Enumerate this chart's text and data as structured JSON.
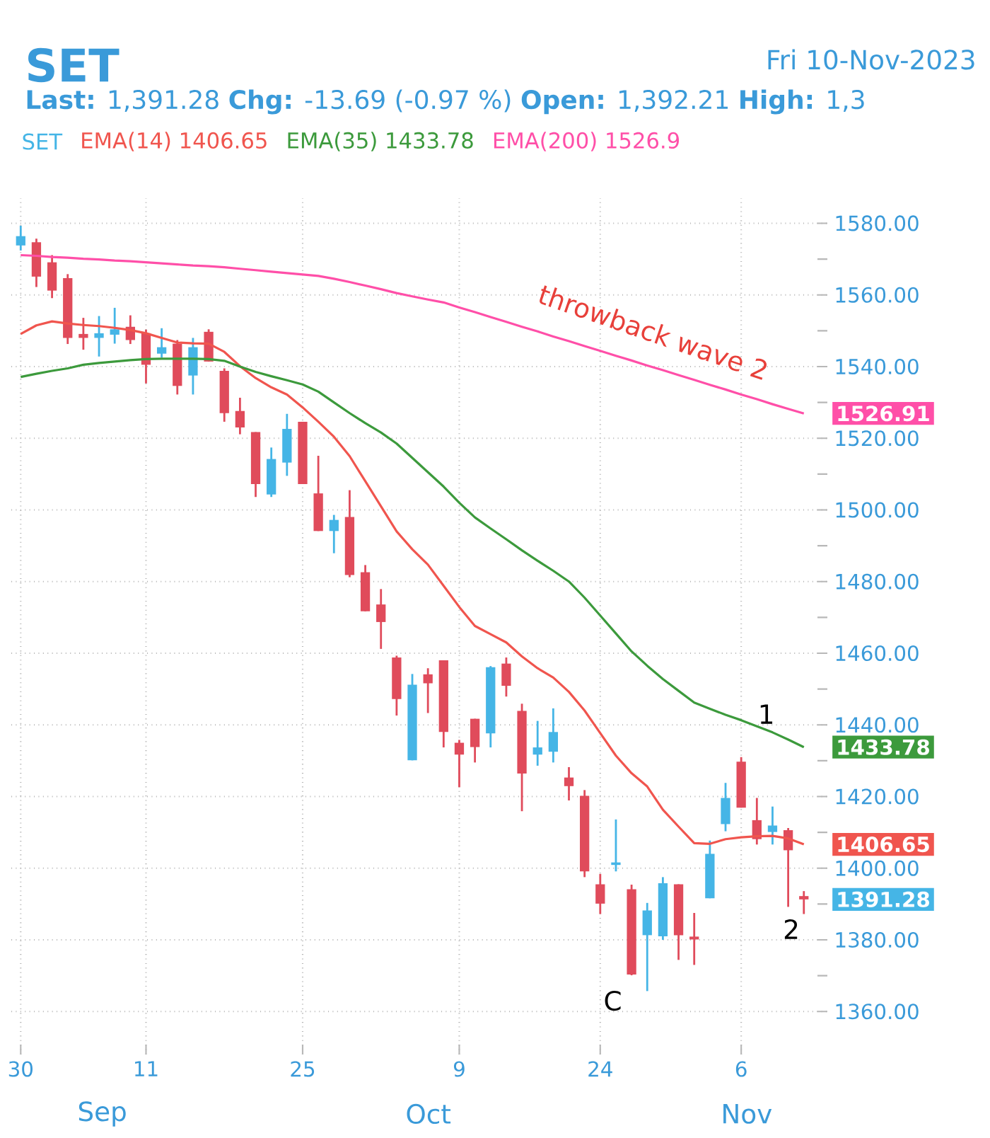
{
  "chart_data": {
    "type": "candlestick",
    "title": "SET",
    "subtitle": "**Last:** 1,391.28 **Chg:** -13.69 (-0.97 %) **Open:** 1,392.21 **High:** 1,3",
    "categories": [
      "30",
      null,
      null,
      null,
      null,
      null,
      null,
      null,
      "11",
      null,
      null,
      null,
      null,
      null,
      null,
      null,
      null,
      null,
      "25",
      null,
      null,
      null,
      null,
      null,
      null,
      null,
      null,
      null,
      "9",
      null,
      null,
      null,
      null,
      null,
      null,
      null,
      null,
      "24",
      null,
      null,
      null,
      null,
      null,
      null,
      null,
      null,
      "6",
      null,
      null,
      null,
      null
    ],
    "series": [
      {
        "name": "SET",
        "color": "#45b5e6",
        "ohlc": [
          [
            1573.8,
            1579.3,
            1572.4,
            1576.4
          ],
          [
            1574.7,
            1575.7,
            1562.2,
            1565.1
          ],
          [
            1569.1,
            1571.1,
            1559.1,
            1561.2
          ],
          [
            1564.7,
            1565.8,
            1546.3,
            1548.0
          ],
          [
            1549.1,
            1553.6,
            1544.7,
            1548.0
          ],
          [
            1548.0,
            1554.1,
            1542.8,
            1549.3
          ],
          [
            1548.9,
            1556.4,
            1546.4,
            1550.4
          ],
          [
            1551.1,
            1554.3,
            1546.3,
            1547.4
          ],
          [
            1549.3,
            1550.3,
            1535.3,
            1540.5
          ],
          [
            1543.6,
            1550.7,
            1542.5,
            1545.4
          ],
          [
            1546.4,
            1547.4,
            1532.2,
            1534.6
          ],
          [
            1537.5,
            1548.0,
            1532.2,
            1545.4
          ],
          [
            1549.7,
            1550.4,
            1541.4,
            1541.4
          ],
          [
            1538.8,
            1539.5,
            1524.6,
            1527.0
          ],
          [
            1527.6,
            1531.3,
            1521.1,
            1523.0
          ],
          [
            1521.7,
            1521.7,
            1503.6,
            1507.2
          ],
          [
            1504.3,
            1517.4,
            1503.6,
            1514.2
          ],
          [
            1513.2,
            1526.8,
            1509.5,
            1522.6
          ],
          [
            1524.6,
            1524.6,
            1507.2,
            1507.2
          ],
          [
            1504.6,
            1515.1,
            1494.1,
            1494.1
          ],
          [
            1494.1,
            1498.6,
            1487.9,
            1497.2
          ],
          [
            1498.0,
            1505.5,
            1481.2,
            1481.8
          ],
          [
            1482.6,
            1484.6,
            1471.7,
            1471.7
          ],
          [
            1473.6,
            1477.9,
            1461.2,
            1468.7
          ],
          [
            1458.8,
            1459.3,
            1442.6,
            1447.2
          ],
          [
            1430.1,
            1454.2,
            1430.1,
            1451.2
          ],
          [
            1454.1,
            1455.8,
            1443.3,
            1451.6
          ],
          [
            1458.0,
            1458.0,
            1433.7,
            1438.0
          ],
          [
            1435.0,
            1435.8,
            1422.6,
            1431.7
          ],
          [
            1441.7,
            1441.7,
            1429.5,
            1433.8
          ],
          [
            1437.6,
            1456.4,
            1433.7,
            1456.1
          ],
          [
            1457.1,
            1458.8,
            1447.9,
            1450.9
          ],
          [
            1443.9,
            1445.9,
            1415.9,
            1426.4
          ],
          [
            1431.7,
            1441.1,
            1428.6,
            1433.7
          ],
          [
            1432.5,
            1444.6,
            1429.5,
            1438.0
          ],
          [
            1425.3,
            1428.2,
            1418.9,
            1422.9
          ],
          [
            1420.2,
            1421.8,
            1397.5,
            1399.1
          ],
          [
            1395.5,
            1398.4,
            1387.2,
            1390.1
          ],
          [
            1400.9,
            1413.6,
            1399.1,
            1401.6
          ],
          [
            1394.1,
            1395.4,
            1370.1,
            1370.3
          ],
          [
            1381.3,
            1390.3,
            1365.7,
            1388.2
          ],
          [
            1381.0,
            1397.5,
            1380.0,
            1395.8
          ],
          [
            1395.5,
            1395.5,
            1374.4,
            1381.3
          ],
          [
            1380.9,
            1387.5,
            1373.0,
            1380.1
          ],
          [
            1391.6,
            1407.7,
            1391.6,
            1404.0
          ],
          [
            1412.3,
            1423.8,
            1410.3,
            1419.6
          ],
          [
            1429.7,
            1431.0,
            1416.9,
            1416.9
          ],
          [
            1413.4,
            1419.6,
            1406.6,
            1408.1
          ],
          [
            1410.1,
            1417.2,
            1406.6,
            1411.9
          ],
          [
            1410.6,
            1411.2,
            1389.2,
            1405.0
          ],
          [
            1392.21,
            1393.6,
            1387.2,
            1391.28
          ]
        ],
        "colors": [
          "#45b5e6",
          "#e04b5b",
          "#e04b5b",
          "#e04b5b",
          "#e04b5b",
          "#45b5e6",
          "#45b5e6",
          "#e04b5b",
          "#e04b5b",
          "#45b5e6",
          "#e04b5b",
          "#45b5e6",
          "#e04b5b",
          "#e04b5b",
          "#e04b5b",
          "#e04b5b",
          "#45b5e6",
          "#45b5e6",
          "#e04b5b",
          "#e04b5b",
          "#45b5e6",
          "#e04b5b",
          "#e04b5b",
          "#e04b5b",
          "#e04b5b",
          "#45b5e6",
          "#e04b5b",
          "#e04b5b",
          "#e04b5b",
          "#e04b5b",
          "#45b5e6",
          "#e04b5b",
          "#e04b5b",
          "#45b5e6",
          "#45b5e6",
          "#e04b5b",
          "#e04b5b",
          "#e04b5b",
          "#45b5e6",
          "#e04b5b",
          "#45b5e6",
          "#45b5e6",
          "#e04b5b",
          "#e04b5b",
          "#45b5e6",
          "#45b5e6",
          "#e04b5b",
          "#e04b5b",
          "#45b5e6",
          "#e04b5b",
          "#e04b5b"
        ],
        "value_labels": [
          null,
          null,
          null,
          null,
          null,
          null,
          null,
          null,
          null,
          null,
          null,
          null,
          null,
          null,
          null,
          null,
          null,
          null,
          null,
          null,
          null,
          null,
          null,
          null,
          null,
          null,
          null,
          null,
          null,
          null,
          null,
          null,
          null,
          null,
          null,
          null,
          null,
          null,
          null,
          null,
          null,
          null,
          null,
          null,
          null,
          null,
          null,
          null,
          null,
          null,
          "1391.28"
        ]
      },
      {
        "name": "EMA(14) 1406.65",
        "type": "line",
        "color": "#f0554e",
        "values": [
          1549.1,
          1551.5,
          1552.6,
          1552.0,
          1551.6,
          1551.3,
          1550.8,
          1550.2,
          1549.3,
          1548.0,
          1546.7,
          1546.5,
          1546.4,
          1544.1,
          1540.1,
          1536.8,
          1534.2,
          1532.2,
          1528.6,
          1524.6,
          1520.4,
          1515.0,
          1508.0,
          1501.0,
          1494.0,
          1489.0,
          1484.7,
          1478.8,
          1472.9,
          1467.6,
          1465.3,
          1463.0,
          1459.1,
          1455.8,
          1453.2,
          1449.2,
          1444.0,
          1437.7,
          1431.4,
          1426.5,
          1422.8,
          1416.3,
          1411.6,
          1407.0,
          1406.8,
          1408.1,
          1408.6,
          1408.9,
          1409.0,
          1408.3,
          1406.65
        ],
        "value_labels": [
          null,
          null,
          null,
          null,
          null,
          null,
          null,
          null,
          null,
          null,
          null,
          null,
          null,
          null,
          null,
          null,
          null,
          null,
          null,
          null,
          null,
          null,
          null,
          null,
          null,
          null,
          null,
          null,
          null,
          null,
          null,
          null,
          null,
          null,
          null,
          null,
          null,
          null,
          null,
          null,
          null,
          null,
          null,
          null,
          null,
          null,
          null,
          null,
          null,
          null,
          "1406.65"
        ]
      },
      {
        "name": "EMA(35) 1433.78",
        "type": "line",
        "color": "#3c9a3c",
        "values": [
          1537.1,
          1538.0,
          1538.8,
          1539.5,
          1540.5,
          1541.0,
          1541.4,
          1541.8,
          1542.1,
          1542.2,
          1542.2,
          1542.2,
          1542.1,
          1541.6,
          1540.0,
          1538.5,
          1537.3,
          1536.2,
          1535.0,
          1533.0,
          1530.0,
          1527.0,
          1524.2,
          1521.6,
          1518.5,
          1514.5,
          1510.5,
          1506.5,
          1502.0,
          1497.9,
          1494.8,
          1491.8,
          1488.7,
          1485.8,
          1483.0,
          1480.0,
          1475.5,
          1470.5,
          1465.5,
          1460.5,
          1456.5,
          1452.8,
          1449.5,
          1446.2,
          1444.5,
          1442.8,
          1441.3,
          1439.6,
          1437.9,
          1435.9,
          1433.78
        ],
        "value_labels": [
          null,
          null,
          null,
          null,
          null,
          null,
          null,
          null,
          null,
          null,
          null,
          null,
          null,
          null,
          null,
          null,
          null,
          null,
          null,
          null,
          null,
          null,
          null,
          null,
          null,
          null,
          null,
          null,
          null,
          null,
          null,
          null,
          null,
          null,
          null,
          null,
          null,
          null,
          null,
          null,
          null,
          null,
          null,
          null,
          null,
          null,
          null,
          null,
          null,
          null,
          "1433.78"
        ]
      },
      {
        "name": "EMA(200) 1526.9",
        "type": "line",
        "color": "#ff4fa8",
        "values": [
          1571.1,
          1570.9,
          1570.6,
          1570.4,
          1570.1,
          1569.9,
          1569.6,
          1569.4,
          1569.1,
          1568.8,
          1568.5,
          1568.2,
          1568.0,
          1567.7,
          1567.3,
          1566.9,
          1566.5,
          1566.1,
          1565.7,
          1565.3,
          1564.5,
          1563.6,
          1562.6,
          1561.6,
          1560.5,
          1559.6,
          1558.7,
          1557.9,
          1556.5,
          1555.2,
          1553.8,
          1552.5,
          1551.1,
          1549.8,
          1548.4,
          1547.1,
          1545.7,
          1544.4,
          1543.0,
          1541.7,
          1540.3,
          1539.0,
          1537.6,
          1536.3,
          1534.9,
          1533.6,
          1532.2,
          1530.9,
          1529.5,
          1528.2,
          1526.91
        ],
        "value_labels": [
          null,
          null,
          null,
          null,
          null,
          null,
          null,
          null,
          null,
          null,
          null,
          null,
          null,
          null,
          null,
          null,
          null,
          null,
          null,
          null,
          null,
          null,
          null,
          null,
          null,
          null,
          null,
          null,
          null,
          null,
          null,
          null,
          null,
          null,
          null,
          null,
          null,
          null,
          null,
          null,
          null,
          null,
          null,
          null,
          null,
          null,
          null,
          null,
          null,
          null,
          "1526.91"
        ]
      }
    ],
    "ylim": [
      1348,
      1587
    ],
    "yticks": [
      {
        "value": 1360,
        "label": "1360.00"
      },
      {
        "value": 1370,
        "label": null
      },
      {
        "value": 1380,
        "label": "1380.00"
      },
      {
        "value": 1390,
        "label": null
      },
      {
        "value": 1400,
        "label": "1400.00"
      },
      {
        "value": 1410,
        "label": null
      },
      {
        "value": 1420,
        "label": "1420.00"
      },
      {
        "value": 1430,
        "label": null
      },
      {
        "value": 1440,
        "label": "1440.00"
      },
      {
        "value": 1450,
        "label": null
      },
      {
        "value": 1460,
        "label": "1460.00"
      },
      {
        "value": 1470,
        "label": null
      },
      {
        "value": 1480,
        "label": "1480.00"
      },
      {
        "value": 1490,
        "label": null
      },
      {
        "value": 1500,
        "label": "1500.00"
      },
      {
        "value": 1510,
        "label": null
      },
      {
        "value": 1520,
        "label": "1520.00"
      },
      {
        "value": 1530,
        "label": null
      },
      {
        "value": 1540,
        "label": "1540.00"
      },
      {
        "value": 1550,
        "label": null
      },
      {
        "value": 1560,
        "label": "1560.00"
      },
      {
        "value": 1570,
        "label": null
      },
      {
        "value": 1580,
        "label": "1580.00"
      }
    ],
    "grid": true,
    "legend": "top left",
    "annotations": [
      "throwback wave 2",
      "1",
      "2",
      "C",
      "Sep",
      "Oct",
      "Nov",
      "Fri 10-Nov-2023"
    ]
  }
}
